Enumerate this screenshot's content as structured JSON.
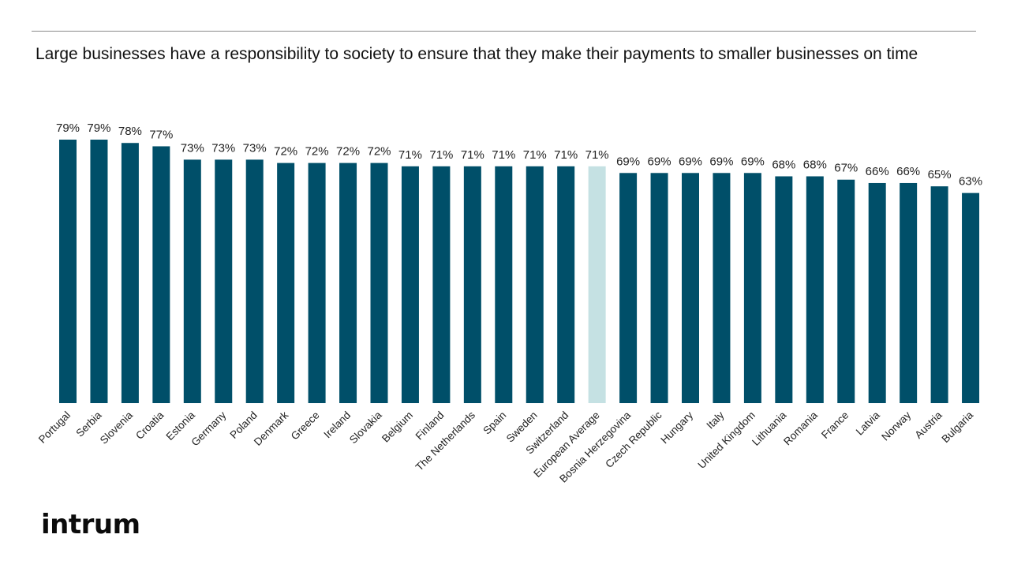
{
  "title": "Large businesses have a responsibility to society to ensure that they make their payments to smaller businesses on time",
  "logo": "intrum",
  "colors": {
    "bar": "#004f69",
    "highlight": "#c5e1e3",
    "label": "#222222"
  },
  "chart_data": {
    "type": "bar",
    "title": "Large businesses have a responsibility to society to ensure that they make their payments to smaller businesses on time",
    "xlabel": "",
    "ylabel": "",
    "ylim": [
      0,
      80
    ],
    "grid": false,
    "value_suffix": "%",
    "highlight": "European Average",
    "categories": [
      "Portugal",
      "Serbia",
      "Slovenia",
      "Croatia",
      "Estonia",
      "Germany",
      "Poland",
      "Denmark",
      "Greece",
      "Ireland",
      "Slovakia",
      "Belgium",
      "Finland",
      "The Netherlands",
      "Spain",
      "Sweden",
      "Switzerland",
      "European Average",
      "Bosnia Herzegovina",
      "Czech Republic",
      "Hungary",
      "Italy",
      "United Kingdom",
      "Lithuania",
      "Romania",
      "France",
      "Latvia",
      "Norway",
      "Austria",
      "Bulgaria"
    ],
    "values": [
      79,
      79,
      78,
      77,
      73,
      73,
      73,
      72,
      72,
      72,
      72,
      71,
      71,
      71,
      71,
      71,
      71,
      71,
      69,
      69,
      69,
      69,
      69,
      68,
      68,
      67,
      66,
      66,
      65,
      63
    ],
    "data_labels": [
      "79%",
      "79%",
      "78%",
      "77%",
      "73%",
      "73%",
      "73%",
      "72%",
      "72%",
      "72%",
      "72%",
      "71%",
      "71%",
      "71%",
      "71%",
      "71%",
      "71%",
      "71%",
      "69%",
      "69%",
      "69%",
      "69%",
      "69%",
      "68%",
      "68%",
      "67%",
      "66%",
      "66%",
      "65%",
      "63%"
    ]
  }
}
